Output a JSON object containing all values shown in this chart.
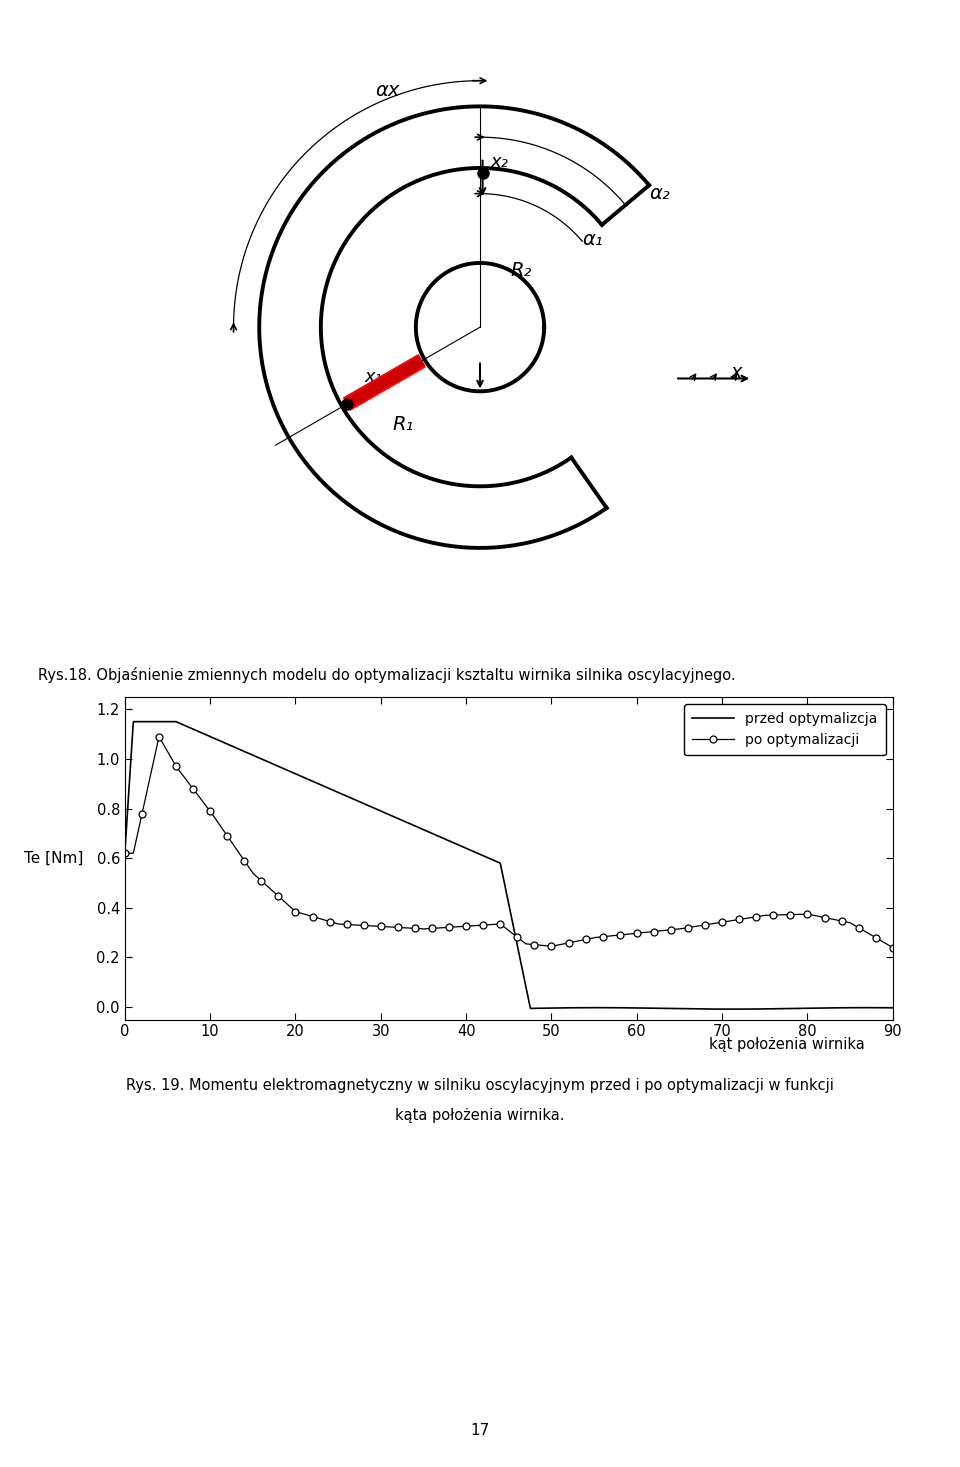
{
  "fig_width": 9.6,
  "fig_height": 14.67,
  "bg_color": "#ffffff",
  "caption1": "Rys.18. Objaśnienie zmiennych modelu do optymalizacji ksztaltu wirnika silnika oscylacyjnego.",
  "caption2_line1": "Rys. 19. Momentu elektromagnetyczny w silniku oscylacyjnym przed i po optymalizacji w funkcji",
  "caption2_line2": "kąta położenia wirnika.",
  "page_number": "17",
  "ylabel": "Te [Nm]",
  "xlabel": "kąt położenia wirnika",
  "legend1": "przed optymalizcja",
  "legend2": "po optymalizacji",
  "xlim": [
    0,
    90
  ],
  "ylim": [
    -0.05,
    1.25
  ],
  "yticks": [
    0,
    0.2,
    0.4,
    0.6,
    0.8,
    1.0,
    1.2
  ],
  "xticks": [
    0,
    10,
    20,
    30,
    40,
    50,
    60,
    70,
    80,
    90
  ]
}
